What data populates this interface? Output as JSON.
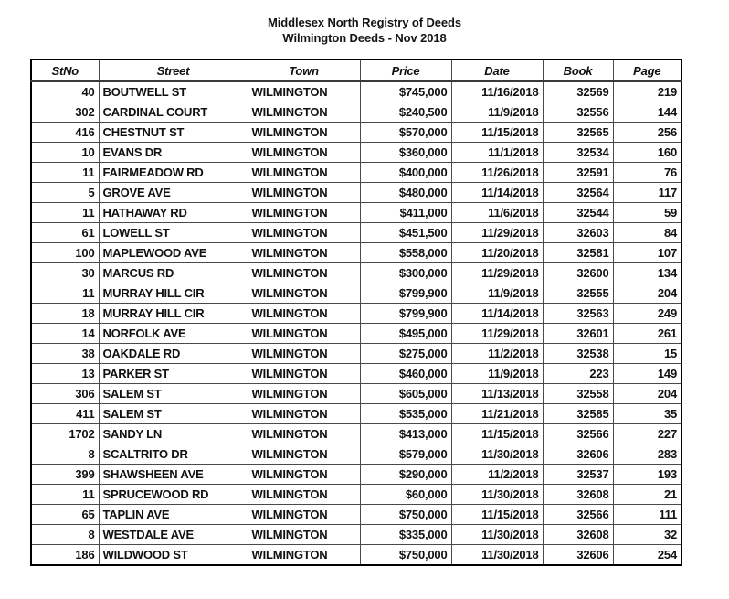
{
  "title": {
    "line1": "Middlesex North Registry of Deeds",
    "line2": "Wilmington Deeds - Nov 2018"
  },
  "colors": {
    "background": "#ffffff",
    "text": "#111111",
    "outer_border": "#000000",
    "inner_border": "#4a4a4a"
  },
  "table": {
    "columns": [
      {
        "key": "stno",
        "label": "StNo"
      },
      {
        "key": "street",
        "label": "Street"
      },
      {
        "key": "town",
        "label": "Town"
      },
      {
        "key": "price",
        "label": "Price"
      },
      {
        "key": "date",
        "label": "Date"
      },
      {
        "key": "book",
        "label": "Book"
      },
      {
        "key": "page",
        "label": "Page"
      }
    ],
    "rows": [
      {
        "stno": "40",
        "street": "BOUTWELL ST",
        "town": "WILMINGTON",
        "price": "$745,000",
        "date": "11/16/2018",
        "book": "32569",
        "page": "219"
      },
      {
        "stno": "302",
        "street": "CARDINAL COURT",
        "town": "WILMINGTON",
        "price": "$240,500",
        "date": "11/9/2018",
        "book": "32556",
        "page": "144"
      },
      {
        "stno": "416",
        "street": "CHESTNUT ST",
        "town": "WILMINGTON",
        "price": "$570,000",
        "date": "11/15/2018",
        "book": "32565",
        "page": "256"
      },
      {
        "stno": "10",
        "street": "EVANS DR",
        "town": "WILMINGTON",
        "price": "$360,000",
        "date": "11/1/2018",
        "book": "32534",
        "page": "160"
      },
      {
        "stno": "11",
        "street": "FAIRMEADOW RD",
        "town": "WILMINGTON",
        "price": "$400,000",
        "date": "11/26/2018",
        "book": "32591",
        "page": "76"
      },
      {
        "stno": "5",
        "street": "GROVE AVE",
        "town": "WILMINGTON",
        "price": "$480,000",
        "date": "11/14/2018",
        "book": "32564",
        "page": "117"
      },
      {
        "stno": "11",
        "street": "HATHAWAY RD",
        "town": "WILMINGTON",
        "price": "$411,000",
        "date": "11/6/2018",
        "book": "32544",
        "page": "59"
      },
      {
        "stno": "61",
        "street": "LOWELL ST",
        "town": "WILMINGTON",
        "price": "$451,500",
        "date": "11/29/2018",
        "book": "32603",
        "page": "84"
      },
      {
        "stno": "100",
        "street": "MAPLEWOOD AVE",
        "town": "WILMINGTON",
        "price": "$558,000",
        "date": "11/20/2018",
        "book": "32581",
        "page": "107"
      },
      {
        "stno": "30",
        "street": "MARCUS RD",
        "town": "WILMINGTON",
        "price": "$300,000",
        "date": "11/29/2018",
        "book": "32600",
        "page": "134"
      },
      {
        "stno": "11",
        "street": "MURRAY HILL CIR",
        "town": "WILMINGTON",
        "price": "$799,900",
        "date": "11/9/2018",
        "book": "32555",
        "page": "204"
      },
      {
        "stno": "18",
        "street": "MURRAY HILL CIR",
        "town": "WILMINGTON",
        "price": "$799,900",
        "date": "11/14/2018",
        "book": "32563",
        "page": "249"
      },
      {
        "stno": "14",
        "street": "NORFOLK AVE",
        "town": "WILMINGTON",
        "price": "$495,000",
        "date": "11/29/2018",
        "book": "32601",
        "page": "261"
      },
      {
        "stno": "38",
        "street": "OAKDALE RD",
        "town": "WILMINGTON",
        "price": "$275,000",
        "date": "11/2/2018",
        "book": "32538",
        "page": "15"
      },
      {
        "stno": "13",
        "street": "PARKER ST",
        "town": "WILMINGTON",
        "price": "$460,000",
        "date": "11/9/2018",
        "book": "223",
        "page": "149"
      },
      {
        "stno": "306",
        "street": "SALEM ST",
        "town": "WILMINGTON",
        "price": "$605,000",
        "date": "11/13/2018",
        "book": "32558",
        "page": "204"
      },
      {
        "stno": "411",
        "street": "SALEM ST",
        "town": "WILMINGTON",
        "price": "$535,000",
        "date": "11/21/2018",
        "book": "32585",
        "page": "35"
      },
      {
        "stno": "1702",
        "street": "SANDY LN",
        "town": "WILMINGTON",
        "price": "$413,000",
        "date": "11/15/2018",
        "book": "32566",
        "page": "227"
      },
      {
        "stno": "8",
        "street": "SCALTRITO DR",
        "town": "WILMINGTON",
        "price": "$579,000",
        "date": "11/30/2018",
        "book": "32606",
        "page": "283"
      },
      {
        "stno": "399",
        "street": "SHAWSHEEN AVE",
        "town": "WILMINGTON",
        "price": "$290,000",
        "date": "11/2/2018",
        "book": "32537",
        "page": "193"
      },
      {
        "stno": "11",
        "street": "SPRUCEWOOD RD",
        "town": "WILMINGTON",
        "price": "$60,000",
        "date": "11/30/2018",
        "book": "32608",
        "page": "21"
      },
      {
        "stno": "65",
        "street": "TAPLIN AVE",
        "town": "WILMINGTON",
        "price": "$750,000",
        "date": "11/15/2018",
        "book": "32566",
        "page": "111"
      },
      {
        "stno": "8",
        "street": "WESTDALE AVE",
        "town": "WILMINGTON",
        "price": "$335,000",
        "date": "11/30/2018",
        "book": "32608",
        "page": "32"
      },
      {
        "stno": "186",
        "street": "WILDWOOD ST",
        "town": "WILMINGTON",
        "price": "$750,000",
        "date": "11/30/2018",
        "book": "32606",
        "page": "254"
      }
    ]
  }
}
